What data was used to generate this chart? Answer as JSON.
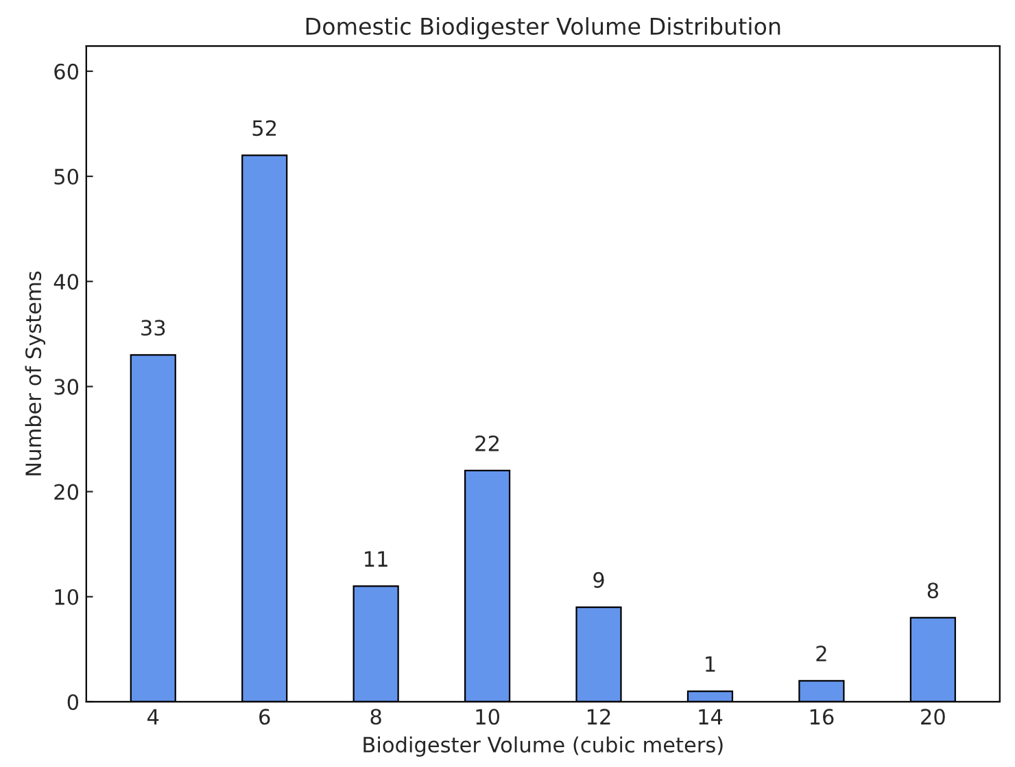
{
  "chart_data": {
    "type": "bar",
    "title": "Domestic Biodigester Volume Distribution",
    "xlabel": "Biodigester Volume (cubic meters)",
    "ylabel": "Number of Systems",
    "categories": [
      "4",
      "6",
      "8",
      "10",
      "12",
      "14",
      "16",
      "20"
    ],
    "values": [
      33,
      52,
      11,
      22,
      9,
      1,
      2,
      8
    ],
    "color": "#6495ed",
    "ylim": [
      0,
      62.4
    ],
    "yticks": [
      0,
      10,
      20,
      30,
      40,
      50,
      60
    ],
    "data_labels": true,
    "grid": false,
    "legend": false
  }
}
